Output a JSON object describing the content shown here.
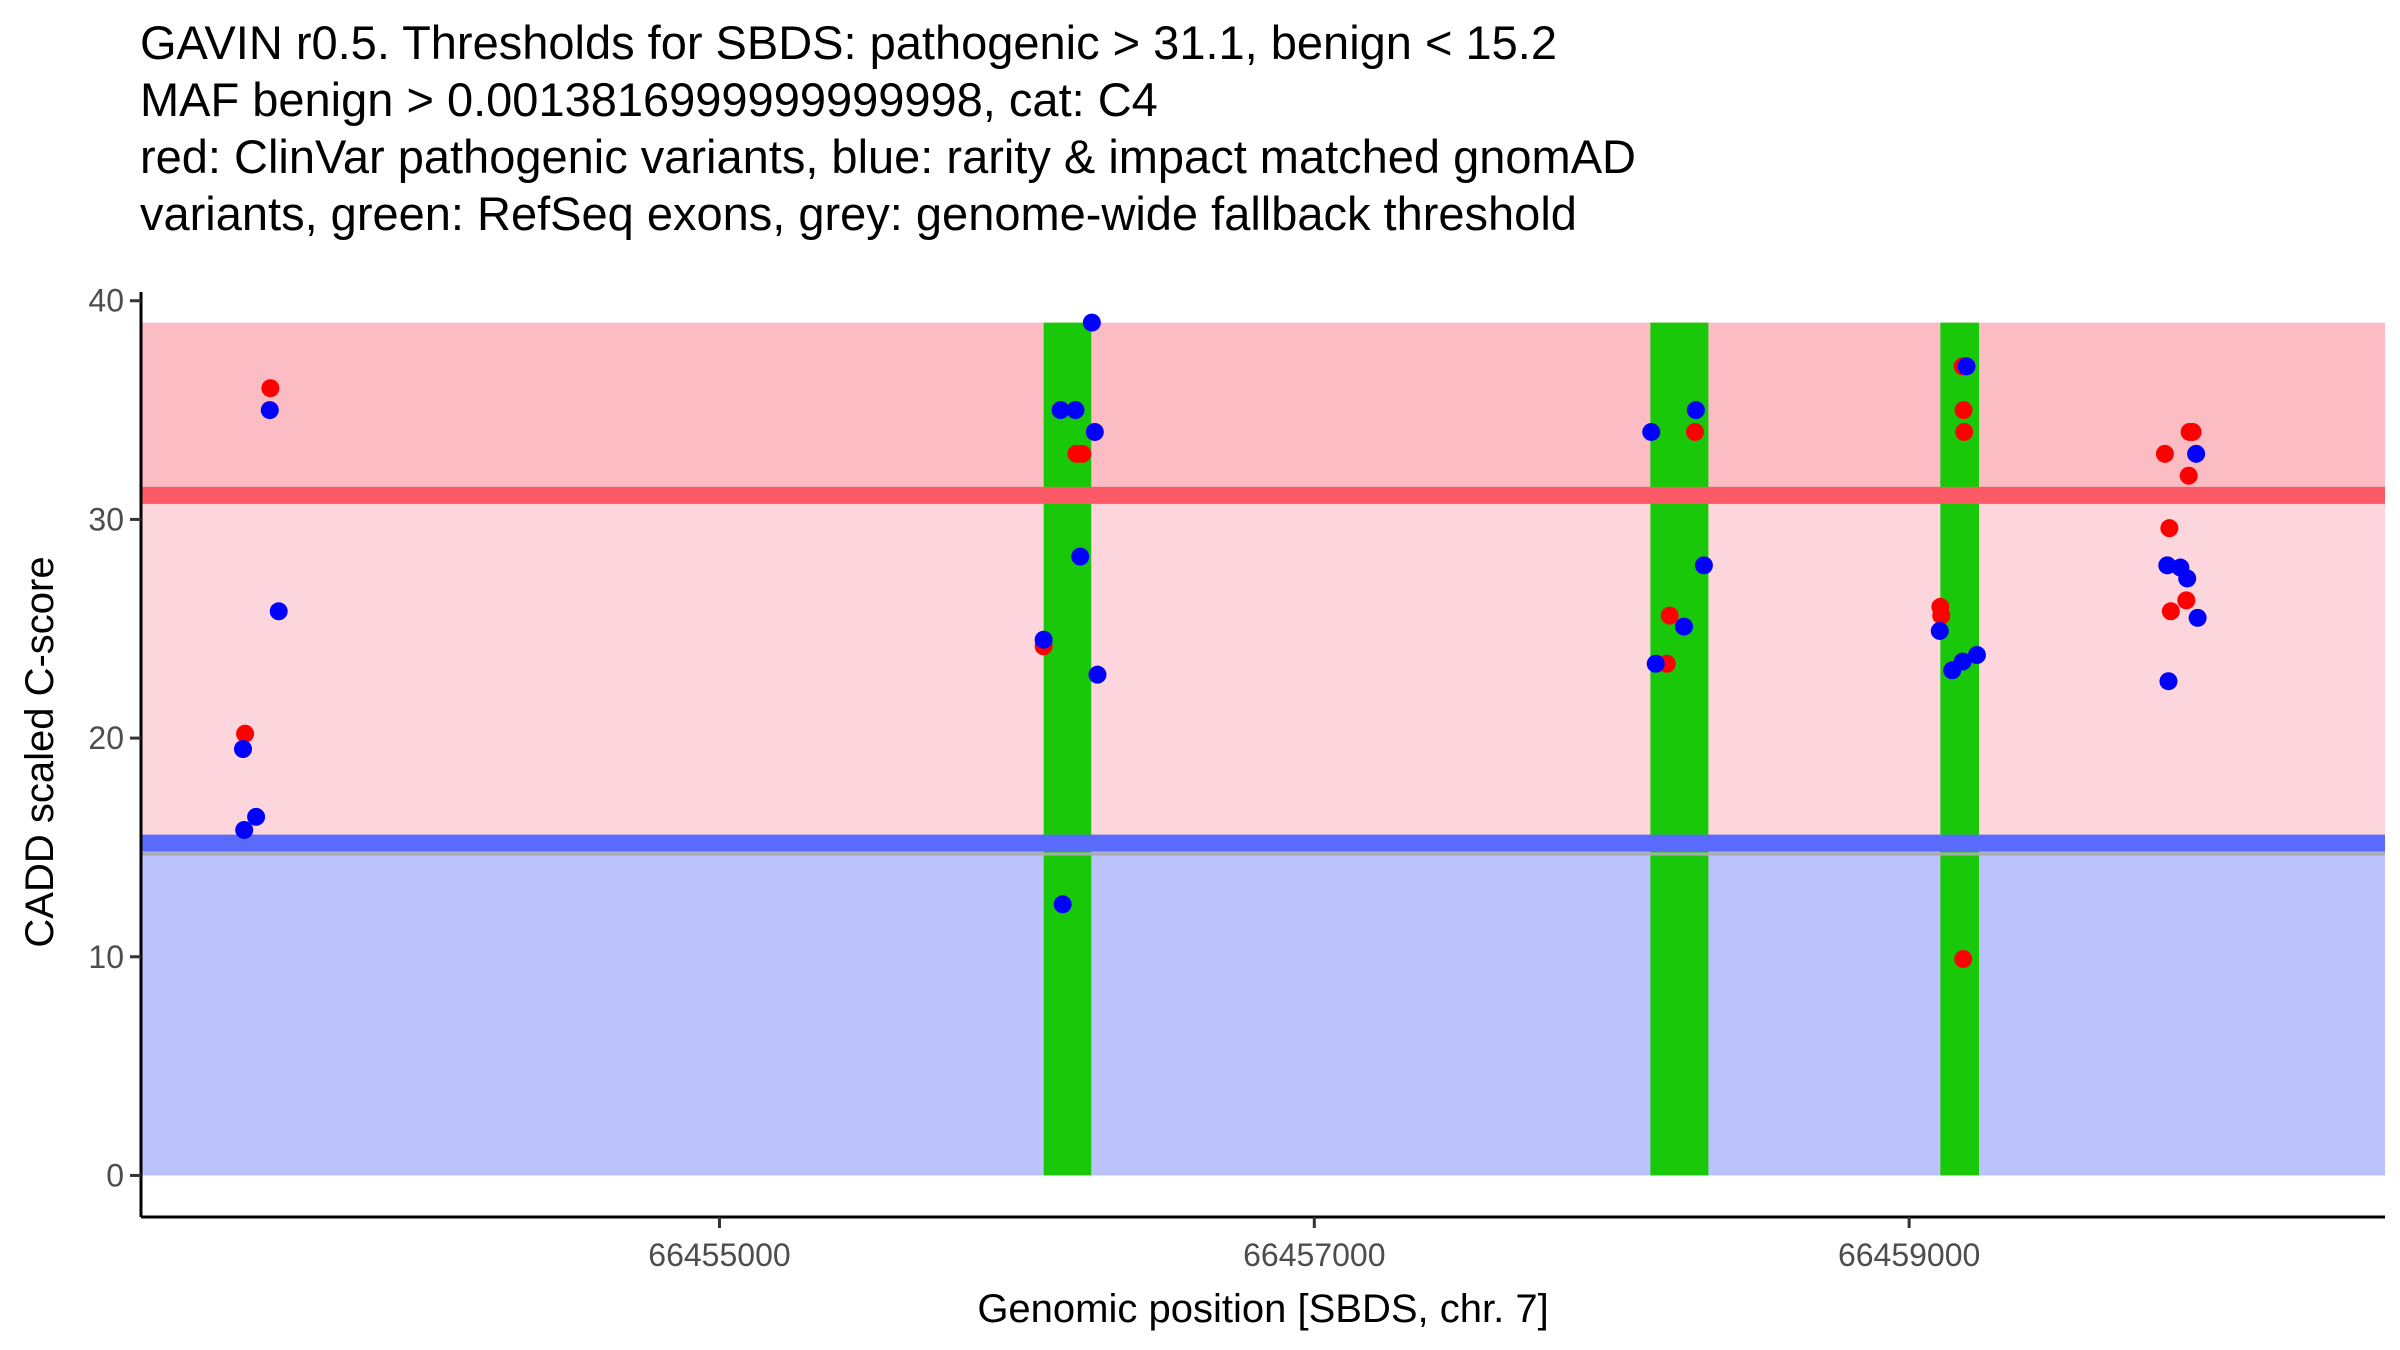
{
  "chart_data": {
    "type": "scatter",
    "title_lines": [
      "GAVIN r0.5. Thresholds for SBDS: pathogenic > 31.1, benign < 15.2",
      "MAF benign > 0.0013816999999999998, cat: C4",
      "red: ClinVar pathogenic variants, blue: rarity & impact matched gnomAD",
      "variants, green: RefSeq exons, grey: genome-wide fallback threshold"
    ],
    "xlabel": "Genomic position [SBDS, chr. 7]",
    "ylabel": "CADD scaled C-score",
    "xlim": [
      66453055,
      66460600
    ],
    "ylim": [
      -1.9,
      40.4
    ],
    "x_ticks": [
      66455000,
      66457000,
      66459000
    ],
    "x_tick_labels": [
      "66455000",
      "66457000",
      "66459000"
    ],
    "y_ticks": [
      0,
      10,
      20,
      30,
      40
    ],
    "y_tick_labels": [
      "0",
      "10",
      "20",
      "30",
      "40"
    ],
    "grid": false,
    "thresholds": {
      "pathogenic": 31.1,
      "benign": 15.2,
      "genome_wide_fallback": 14.7,
      "max_score": 39
    },
    "regions": [
      {
        "name": "pathogenic",
        "from": 31.1,
        "to": 39,
        "color": "#fbbcc3"
      },
      {
        "name": "uncertain",
        "from": 15.2,
        "to": 31.1,
        "color": "#fdd5dc"
      },
      {
        "name": "benign",
        "from": 0,
        "to": 15.2,
        "color": "#bcc2fb"
      }
    ],
    "exons": [
      {
        "start": 66456090,
        "end": 66456250
      },
      {
        "start": 66458130,
        "end": 66458325
      },
      {
        "start": 66459105,
        "end": 66459235
      }
    ],
    "colors": {
      "clinvar": "#ff0000",
      "gnomad": "#0000ff",
      "exon": "#1ac80a",
      "pathogenic_line": "#fb5a66",
      "benign_line": "#5a6afb",
      "fallback_line": "#aaaaaa"
    },
    "series": [
      {
        "name": "ClinVar pathogenic variants",
        "color": "#ff0000",
        "points": [
          {
            "x": 66453405,
            "y": 20.2
          },
          {
            "x": 66453490,
            "y": 36
          },
          {
            "x": 66456090,
            "y": 24.2
          },
          {
            "x": 66456200,
            "y": 33
          },
          {
            "x": 66456220,
            "y": 33
          },
          {
            "x": 66458185,
            "y": 23.4
          },
          {
            "x": 66458195,
            "y": 25.6
          },
          {
            "x": 66458280,
            "y": 34
          },
          {
            "x": 66459105,
            "y": 26
          },
          {
            "x": 66459108,
            "y": 25.6
          },
          {
            "x": 66459180,
            "y": 37
          },
          {
            "x": 66459183,
            "y": 35
          },
          {
            "x": 66459185,
            "y": 34
          },
          {
            "x": 66459182,
            "y": 9.9
          },
          {
            "x": 66459860,
            "y": 33
          },
          {
            "x": 66459875,
            "y": 29.6
          },
          {
            "x": 66459880,
            "y": 25.8
          },
          {
            "x": 66459932,
            "y": 26.3
          },
          {
            "x": 66459940,
            "y": 32
          },
          {
            "x": 66459943,
            "y": 34
          },
          {
            "x": 66459953,
            "y": 34
          }
        ]
      },
      {
        "name": "rarity & impact matched gnomAD variants",
        "color": "#0000ff",
        "points": [
          {
            "x": 66453398,
            "y": 19.5
          },
          {
            "x": 66453402,
            "y": 15.8
          },
          {
            "x": 66453442,
            "y": 16.4
          },
          {
            "x": 66453488,
            "y": 35
          },
          {
            "x": 66453518,
            "y": 25.8
          },
          {
            "x": 66456090,
            "y": 24.5
          },
          {
            "x": 66456147,
            "y": 35
          },
          {
            "x": 66456154,
            "y": 12.4
          },
          {
            "x": 66456197,
            "y": 35
          },
          {
            "x": 66456213,
            "y": 28.3
          },
          {
            "x": 66456252,
            "y": 39
          },
          {
            "x": 66456262,
            "y": 34
          },
          {
            "x": 66456271,
            "y": 22.9
          },
          {
            "x": 66458133,
            "y": 34
          },
          {
            "x": 66458148,
            "y": 23.4
          },
          {
            "x": 66458243,
            "y": 25.1
          },
          {
            "x": 66458283,
            "y": 35
          },
          {
            "x": 66458310,
            "y": 27.9
          },
          {
            "x": 66459103,
            "y": 24.9
          },
          {
            "x": 66459145,
            "y": 23.1
          },
          {
            "x": 66459180,
            "y": 23.5
          },
          {
            "x": 66459193,
            "y": 37
          },
          {
            "x": 66459228,
            "y": 23.8
          },
          {
            "x": 66459868,
            "y": 27.9
          },
          {
            "x": 66459872,
            "y": 22.6
          },
          {
            "x": 66459912,
            "y": 27.8
          },
          {
            "x": 66459935,
            "y": 27.3
          },
          {
            "x": 66459965,
            "y": 33
          },
          {
            "x": 66459970,
            "y": 25.5
          }
        ]
      }
    ]
  }
}
